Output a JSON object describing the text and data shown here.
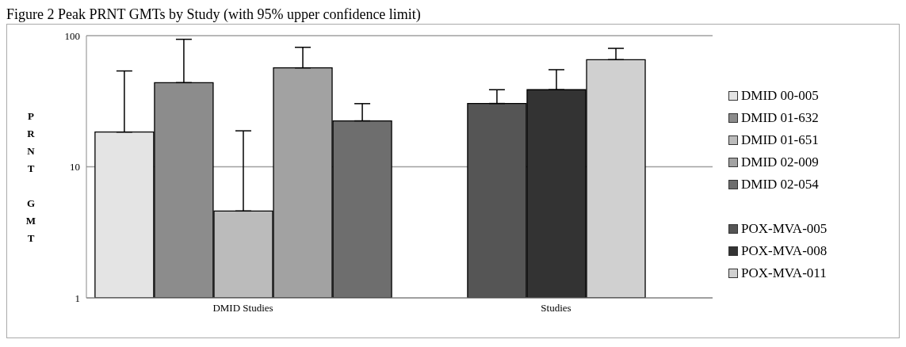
{
  "chart_data": {
    "type": "bar",
    "title": "Figure 2 Peak PRNT GMTs by Study (with 95% upper confidence limit)",
    "ylabel": "PRNT GMT",
    "categories": [
      "DMID Studies",
      "Studies"
    ],
    "series": [
      {
        "name": "DMID 00-005",
        "color": "#e4e4e4",
        "values": [
          18.4,
          null
        ],
        "errors": [
          [
            18.4,
            53.8
          ],
          null
        ]
      },
      {
        "name": "DMID 01-632",
        "color": "#8c8c8c",
        "values": [
          43.8,
          null
        ],
        "errors": [
          [
            43.8,
            93.8
          ],
          null
        ]
      },
      {
        "name": "DMID 01-651",
        "color": "#bbbbbb",
        "values": [
          4.6,
          null
        ],
        "errors": [
          [
            4.6,
            18.8
          ],
          null
        ]
      },
      {
        "name": "DMID 02-009",
        "color": "#a2a2a2",
        "values": [
          56.8,
          null
        ],
        "errors": [
          [
            56.8,
            81.5
          ],
          null
        ]
      },
      {
        "name": "DMID 02-054",
        "color": "#6e6e6e",
        "values": [
          22.4,
          null
        ],
        "errors": [
          [
            22.4,
            30.3
          ],
          null
        ]
      },
      {
        "name": "POX-MVA-005",
        "color": "#555555",
        "values": [
          null,
          30.4
        ],
        "errors": [
          null,
          [
            30.4,
            38.7
          ]
        ]
      },
      {
        "name": "POX-MVA-008",
        "color": "#333333",
        "values": [
          null,
          38.7
        ],
        "errors": [
          null,
          [
            38.7,
            55
          ]
        ]
      },
      {
        "name": "POX-MVA-011",
        "color": "#d0d0d0",
        "values": [
          null,
          65.6
        ],
        "errors": [
          null,
          [
            65.6,
            80
          ]
        ]
      }
    ],
    "log": "y",
    "ylim": [
      1,
      100
    ],
    "yticks": [
      1,
      10,
      100
    ],
    "grid": "y",
    "legend": "right"
  }
}
